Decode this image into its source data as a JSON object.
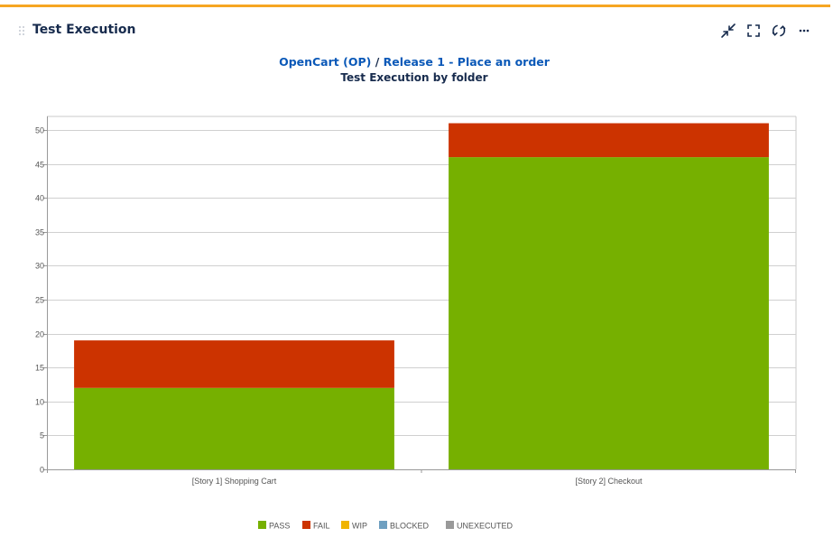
{
  "panel": {
    "title": "Test Execution"
  },
  "toolbar": {
    "collapse_icon": "collapse-icon",
    "fullscreen_icon": "fullscreen-icon",
    "refresh_icon": "refresh-icon",
    "more_icon": "more-icon"
  },
  "breadcrumb": {
    "project": "OpenCart (OP)",
    "separator": "/",
    "release": "Release 1 - Place an order"
  },
  "chart_title": "Test Execution by folder",
  "colors": {
    "accent": "#f6a623",
    "link": "#0b59b8",
    "pass": "#76b000",
    "fail": "#cc3300",
    "wip": "#f0b400",
    "blocked": "#6e9fc0",
    "unexecuted": "#999999"
  },
  "legend": [
    {
      "label": "PASS",
      "color": "#76b000"
    },
    {
      "label": "FAIL",
      "color": "#cc3300"
    },
    {
      "label": "WIP",
      "color": "#f0b400"
    },
    {
      "label": "BLOCKED",
      "color": "#6e9fc0"
    },
    {
      "label": "UNEXECUTED",
      "color": "#999999"
    }
  ],
  "chart_data": {
    "type": "bar",
    "stacked": true,
    "title": "Test Execution by folder",
    "categories": [
      "[Story 1] Shopping Cart",
      "[Story 2] Checkout"
    ],
    "series": [
      {
        "name": "PASS",
        "values": [
          12,
          46
        ],
        "color": "#76b000"
      },
      {
        "name": "FAIL",
        "values": [
          7,
          5
        ],
        "color": "#cc3300"
      },
      {
        "name": "WIP",
        "values": [
          0,
          0
        ],
        "color": "#f0b400"
      },
      {
        "name": "BLOCKED",
        "values": [
          0,
          0
        ],
        "color": "#6e9fc0"
      },
      {
        "name": "UNEXECUTED",
        "values": [
          0,
          0
        ],
        "color": "#999999"
      }
    ],
    "ylim": [
      0,
      52
    ],
    "yticks": [
      0,
      5,
      10,
      15,
      20,
      25,
      30,
      35,
      40,
      45,
      50
    ],
    "grid": true,
    "legend_position": "bottom"
  }
}
